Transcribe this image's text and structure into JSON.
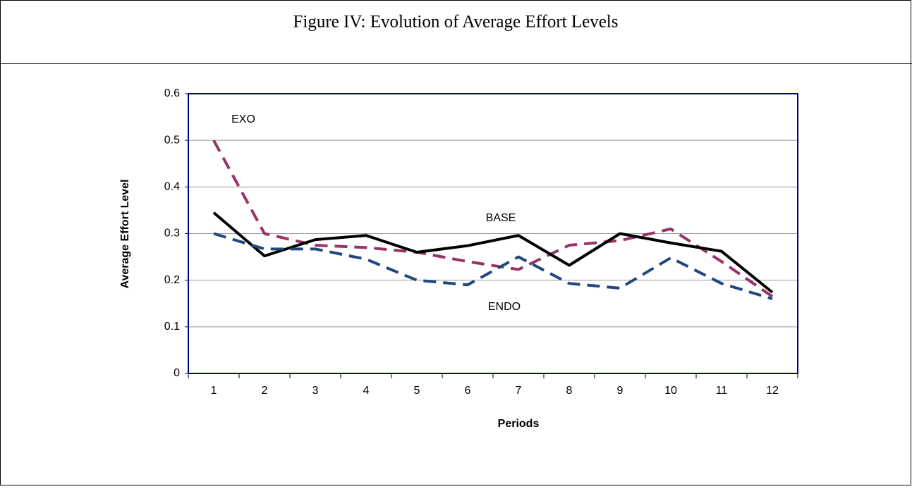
{
  "chart_data": {
    "type": "line",
    "title": "Figure IV: Evolution of Average Effort Levels",
    "x_label": "Periods",
    "y_label": "Average Effort Level",
    "categories": [
      "1",
      "2",
      "3",
      "4",
      "5",
      "6",
      "7",
      "8",
      "9",
      "10",
      "11",
      "12"
    ],
    "series": [
      {
        "name": "EXO",
        "color": "#993366",
        "dash": "dashed",
        "values": [
          0.5,
          0.3,
          0.275,
          0.27,
          0.26,
          0.24,
          0.223,
          0.275,
          0.285,
          0.31,
          0.24,
          0.165
        ]
      },
      {
        "name": "BASE",
        "color": "#000000",
        "dash": "solid",
        "values": [
          0.345,
          0.252,
          0.287,
          0.296,
          0.26,
          0.274,
          0.296,
          0.232,
          0.3,
          0.28,
          0.262,
          0.174
        ]
      },
      {
        "name": "ENDO",
        "color": "#1f497d",
        "dash": "dashed",
        "values": [
          0.3,
          0.267,
          0.267,
          0.245,
          0.2,
          0.19,
          0.25,
          0.193,
          0.183,
          0.248,
          0.193,
          0.16
        ]
      }
    ],
    "ylim": [
      0,
      0.6
    ],
    "yticks": [
      0,
      0.1,
      0.2,
      0.3,
      0.4,
      0.5,
      0.6
    ],
    "grid": true
  }
}
